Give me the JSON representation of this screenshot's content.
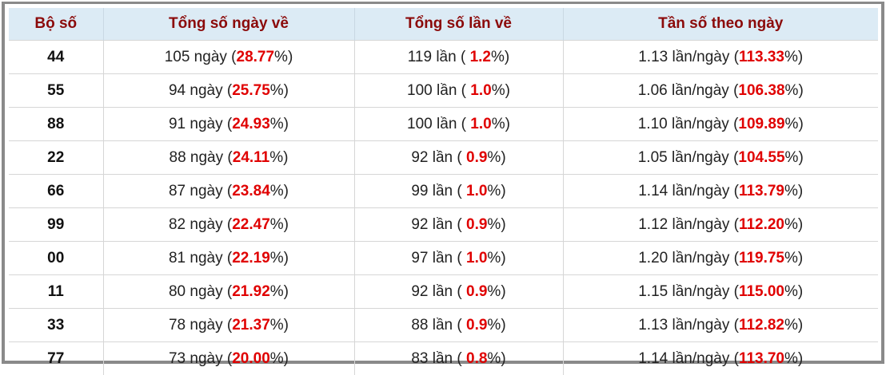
{
  "table": {
    "headers": [
      "Bộ số",
      "Tổng số ngày về",
      "Tổng số lần về",
      "Tần số theo ngày"
    ],
    "rows": [
      [
        "44",
        [
          "105 ngày (",
          "28.77",
          "%)"
        ],
        [
          "119 lần ( ",
          "1.2",
          "%)"
        ],
        [
          "1.13 lần/ngày (",
          "113.33",
          "%)"
        ]
      ],
      [
        "55",
        [
          "94 ngày (",
          "25.75",
          "%)"
        ],
        [
          "100 lần ( ",
          "1.0",
          "%)"
        ],
        [
          "1.06 lần/ngày (",
          "106.38",
          "%)"
        ]
      ],
      [
        "88",
        [
          "91 ngày (",
          "24.93",
          "%)"
        ],
        [
          "100 lần ( ",
          "1.0",
          "%)"
        ],
        [
          "1.10 lần/ngày (",
          "109.89",
          "%)"
        ]
      ],
      [
        "22",
        [
          "88 ngày (",
          "24.11",
          "%)"
        ],
        [
          "92 lần ( ",
          "0.9",
          "%)"
        ],
        [
          "1.05 lần/ngày (",
          "104.55",
          "%)"
        ]
      ],
      [
        "66",
        [
          "87 ngày (",
          "23.84",
          "%)"
        ],
        [
          "99 lần ( ",
          "1.0",
          "%)"
        ],
        [
          "1.14 lần/ngày (",
          "113.79",
          "%)"
        ]
      ],
      [
        "99",
        [
          "82 ngày (",
          "22.47",
          "%)"
        ],
        [
          "92 lần ( ",
          "0.9",
          "%)"
        ],
        [
          "1.12 lần/ngày (",
          "112.20",
          "%)"
        ]
      ],
      [
        "00",
        [
          "81 ngày (",
          "22.19",
          "%)"
        ],
        [
          "97 lần ( ",
          "1.0",
          "%)"
        ],
        [
          "1.20 lần/ngày (",
          "119.75",
          "%)"
        ]
      ],
      [
        "11",
        [
          "80 ngày (",
          "21.92",
          "%)"
        ],
        [
          "92 lần ( ",
          "0.9",
          "%)"
        ],
        [
          "1.15 lần/ngày (",
          "115.00",
          "%)"
        ]
      ],
      [
        "33",
        [
          "78 ngày (",
          "21.37",
          "%)"
        ],
        [
          "88 lần ( ",
          "0.9",
          "%)"
        ],
        [
          "1.13 lần/ngày (",
          "112.82",
          "%)"
        ]
      ],
      [
        "77",
        [
          "73 ngày (",
          "20.00",
          "%)"
        ],
        [
          "83 lần ( ",
          "0.8",
          "%)"
        ],
        [
          "1.14 lần/ngày (",
          "113.70",
          "%)"
        ]
      ]
    ]
  }
}
